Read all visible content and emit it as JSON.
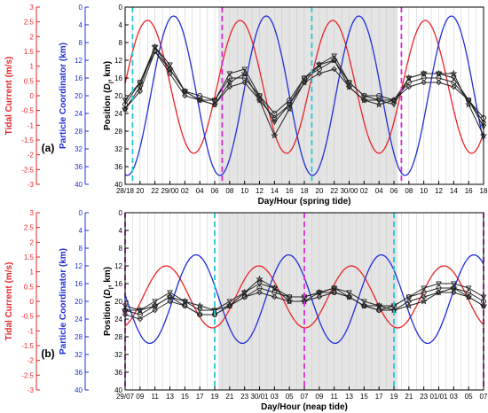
{
  "colors": {
    "tidal": "#e8252a",
    "coord": "#1f2fd6",
    "particle": "#222222",
    "cyan": "#22c7d6",
    "magenta": "#d62bd6",
    "shade": "#e4e4e4",
    "grid": "#c8c8c8"
  },
  "chart_data": [
    {
      "type": "line",
      "panel_label": "(a)",
      "xlabel": "Day/Hour (spring tide)",
      "ylabel_main": "Position (D_l, km)",
      "ylabel_main_parts": [
        "Position (",
        "D",
        "l",
        ", km)"
      ],
      "ylabel_coord": "Particle Coordinator (km)",
      "ylabel_tidal": "Tidal Current (m/s)",
      "x_ticks": [
        "28/18",
        "20",
        "22",
        "29/00",
        "02",
        "04",
        "06",
        "08",
        "10",
        "12",
        "14",
        "16",
        "18",
        "20",
        "22",
        "30/00",
        "02",
        "04",
        "06",
        "08",
        "10",
        "12",
        "14",
        "16",
        "18"
      ],
      "x_range_hours": [
        0,
        48
      ],
      "y_ticks": [
        0,
        4,
        8,
        12,
        16,
        20,
        24,
        28,
        32,
        36,
        40
      ],
      "y_range": [
        0,
        40
      ],
      "y_inverted": true,
      "coord_ticks": [
        0,
        4,
        8,
        12,
        16,
        20,
        24,
        28,
        32,
        36,
        40
      ],
      "tidal_ticks": [
        3,
        2.5,
        2,
        1.5,
        1,
        0.5,
        0,
        -0.5,
        -1,
        -1.5,
        -2,
        -2.5,
        -3
      ],
      "shaded_hours": [
        12.5,
        36.5
      ],
      "cyan_lines_hours": [
        1,
        25
      ],
      "magenta_lines_hours": [
        13,
        37
      ],
      "tidal_current": {
        "phase_hour": 3,
        "period": 12.4,
        "mean_position": 18,
        "amplitude_position": 15
      },
      "particle_coordinator": {
        "phase_hour": 6.5,
        "period": 12.4,
        "mean_position": 20,
        "amplitude_position": 18
      },
      "particles": [
        {
          "marker": "circle",
          "values": [
            [
              0,
              22
            ],
            [
              2,
              17
            ],
            [
              4,
              10
            ],
            [
              6,
              14
            ],
            [
              8,
              19
            ],
            [
              10,
              20
            ],
            [
              12,
              21
            ],
            [
              14,
              16
            ],
            [
              16,
              16
            ],
            [
              18,
              20
            ],
            [
              20,
              24
            ],
            [
              22,
              21
            ],
            [
              24,
              16
            ],
            [
              26,
              14
            ],
            [
              28,
              12
            ],
            [
              30,
              17
            ],
            [
              32,
              20
            ],
            [
              34,
              20
            ],
            [
              36,
              21
            ],
            [
              38,
              17
            ],
            [
              40,
              16
            ],
            [
              42,
              16
            ],
            [
              44,
              17
            ],
            [
              46,
              21
            ],
            [
              48,
              25
            ]
          ]
        },
        {
          "marker": "triangle",
          "values": [
            [
              0,
              21
            ],
            [
              2,
              17
            ],
            [
              4,
              9
            ],
            [
              6,
              13
            ],
            [
              8,
              19
            ],
            [
              10,
              21
            ],
            [
              12,
              21
            ],
            [
              14,
              15
            ],
            [
              16,
              14
            ],
            [
              18,
              20
            ],
            [
              20,
              26
            ],
            [
              22,
              22
            ],
            [
              24,
              16
            ],
            [
              26,
              13
            ],
            [
              28,
              11
            ],
            [
              30,
              17
            ],
            [
              32,
              20
            ],
            [
              34,
              21
            ],
            [
              36,
              22
            ],
            [
              38,
              16
            ],
            [
              40,
              15
            ],
            [
              42,
              15
            ],
            [
              44,
              16
            ],
            [
              46,
              21
            ],
            [
              48,
              27
            ]
          ]
        },
        {
          "marker": "star",
          "values": [
            [
              0,
              23
            ],
            [
              2,
              18
            ],
            [
              4,
              9
            ],
            [
              6,
              14
            ],
            [
              8,
              19
            ],
            [
              10,
              21
            ],
            [
              12,
              22
            ],
            [
              14,
              17
            ],
            [
              16,
              15
            ],
            [
              18,
              21
            ],
            [
              20,
              29
            ],
            [
              22,
              23
            ],
            [
              24,
              17
            ],
            [
              26,
              13
            ],
            [
              28,
              12
            ],
            [
              30,
              18
            ],
            [
              32,
              21
            ],
            [
              34,
              22
            ],
            [
              36,
              21
            ],
            [
              38,
              16
            ],
            [
              40,
              15
            ],
            [
              42,
              15
            ],
            [
              44,
              15
            ],
            [
              46,
              22
            ],
            [
              48,
              29
            ]
          ]
        },
        {
          "marker": "diamond",
          "values": [
            [
              0,
              23
            ],
            [
              2,
              19
            ],
            [
              4,
              10
            ],
            [
              6,
              15
            ],
            [
              8,
              20
            ],
            [
              10,
              21
            ],
            [
              12,
              22
            ],
            [
              14,
              18
            ],
            [
              16,
              17
            ],
            [
              18,
              21
            ],
            [
              20,
              25
            ],
            [
              22,
              22
            ],
            [
              24,
              17
            ],
            [
              26,
              15
            ],
            [
              28,
              14
            ],
            [
              30,
              18
            ],
            [
              32,
              21
            ],
            [
              34,
              21
            ],
            [
              36,
              21
            ],
            [
              38,
              18
            ],
            [
              40,
              17
            ],
            [
              42,
              17
            ],
            [
              44,
              18
            ],
            [
              46,
              21
            ],
            [
              48,
              26
            ]
          ]
        }
      ]
    },
    {
      "type": "line",
      "panel_label": "(b)",
      "xlabel": "Day/Hour (neap tide)",
      "ylabel_main": "Position (D_l, km)",
      "ylabel_main_parts": [
        "Position (",
        "D",
        "l",
        ", km)"
      ],
      "ylabel_coord": "Particle Coordinator (km)",
      "ylabel_tidal": "Tidal Current (m/s)",
      "x_ticks": [
        "29/07",
        "09",
        "11",
        "13",
        "15",
        "17",
        "19",
        "21",
        "23",
        "30/01",
        "03",
        "05",
        "07",
        "09",
        "11",
        "13",
        "15",
        "17",
        "19",
        "21",
        "23",
        "01/01",
        "03",
        "05",
        "07"
      ],
      "x_range_hours": [
        0,
        48
      ],
      "y_ticks": [
        0,
        4,
        8,
        12,
        16,
        20,
        24,
        28,
        32,
        36,
        40
      ],
      "y_range": [
        0,
        40
      ],
      "y_inverted": true,
      "coord_ticks": [
        0,
        4,
        8,
        12,
        16,
        20,
        24,
        28,
        32,
        36,
        40
      ],
      "tidal_ticks": [
        3,
        2.5,
        2,
        1.5,
        1,
        0.5,
        0,
        -0.5,
        -1,
        -1.5,
        -2,
        -2.5,
        -3
      ],
      "shaded_hours": [
        12.5,
        36.5
      ],
      "cyan_lines_hours": [
        12,
        36
      ],
      "magenta_lines_hours": [
        0,
        24,
        48
      ],
      "tidal_current": {
        "phase_hour": 5.5,
        "period": 12.4,
        "mean_position": 19,
        "amplitude_position": 7
      },
      "particle_coordinator": {
        "phase_hour": 9.5,
        "period": 12.4,
        "mean_position": 19.5,
        "amplitude_position": 10
      },
      "particles": [
        {
          "marker": "circle",
          "values": [
            [
              0,
              22
            ],
            [
              2,
              23
            ],
            [
              4,
              21
            ],
            [
              6,
              19
            ],
            [
              8,
              21
            ],
            [
              10,
              23
            ],
            [
              12,
              23
            ],
            [
              14,
              21
            ],
            [
              16,
              19
            ],
            [
              18,
              17
            ],
            [
              20,
              18
            ],
            [
              22,
              19
            ],
            [
              24,
              19
            ],
            [
              26,
              18
            ],
            [
              28,
              18
            ],
            [
              30,
              19
            ],
            [
              32,
              21
            ],
            [
              34,
              22
            ],
            [
              36,
              21
            ],
            [
              38,
              19
            ],
            [
              40,
              18
            ],
            [
              42,
              17
            ],
            [
              44,
              17
            ],
            [
              46,
              18
            ],
            [
              48,
              20
            ]
          ]
        },
        {
          "marker": "triangle",
          "values": [
            [
              0,
              21
            ],
            [
              2,
              22
            ],
            [
              4,
              20
            ],
            [
              6,
              18
            ],
            [
              8,
              20
            ],
            [
              10,
              22
            ],
            [
              12,
              22
            ],
            [
              14,
              20
            ],
            [
              16,
              18
            ],
            [
              18,
              16
            ],
            [
              20,
              17
            ],
            [
              22,
              19
            ],
            [
              24,
              19
            ],
            [
              26,
              18
            ],
            [
              28,
              17
            ],
            [
              30,
              18
            ],
            [
              32,
              20
            ],
            [
              34,
              21
            ],
            [
              36,
              21
            ],
            [
              38,
              19
            ],
            [
              40,
              17
            ],
            [
              42,
              16
            ],
            [
              44,
              16
            ],
            [
              46,
              17
            ],
            [
              48,
              19
            ]
          ]
        },
        {
          "marker": "star",
          "values": [
            [
              0,
              22
            ],
            [
              2,
              22
            ],
            [
              4,
              21
            ],
            [
              6,
              19
            ],
            [
              8,
              20
            ],
            [
              10,
              21
            ],
            [
              12,
              22
            ],
            [
              14,
              21
            ],
            [
              16,
              18
            ],
            [
              18,
              15
            ],
            [
              20,
              17
            ],
            [
              22,
              20
            ],
            [
              24,
              20
            ],
            [
              26,
              18
            ],
            [
              28,
              17
            ],
            [
              30,
              19
            ],
            [
              32,
              21
            ],
            [
              34,
              21
            ],
            [
              36,
              22
            ],
            [
              38,
              21
            ],
            [
              40,
              20
            ],
            [
              42,
              18
            ],
            [
              44,
              17
            ],
            [
              46,
              19
            ],
            [
              48,
              21
            ]
          ]
        },
        {
          "marker": "diamond",
          "values": [
            [
              0,
              23
            ],
            [
              2,
              24
            ],
            [
              4,
              22
            ],
            [
              6,
              20
            ],
            [
              8,
              21
            ],
            [
              10,
              23
            ],
            [
              12,
              23
            ],
            [
              14,
              21
            ],
            [
              16,
              19
            ],
            [
              18,
              18
            ],
            [
              20,
              19
            ],
            [
              22,
              20
            ],
            [
              24,
              20
            ],
            [
              26,
              19
            ],
            [
              28,
              18
            ],
            [
              30,
              19
            ],
            [
              32,
              21
            ],
            [
              34,
              22
            ],
            [
              36,
              22
            ],
            [
              38,
              20
            ],
            [
              40,
              19
            ],
            [
              42,
              18
            ],
            [
              44,
              18
            ],
            [
              46,
              19
            ],
            [
              48,
              21
            ]
          ]
        }
      ]
    }
  ]
}
